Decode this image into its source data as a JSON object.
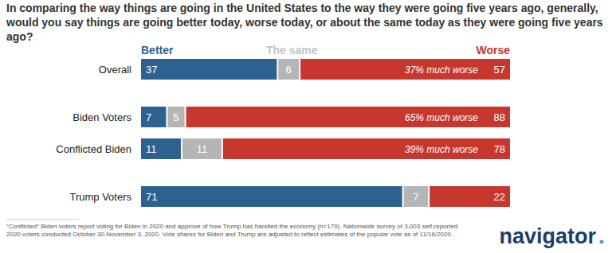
{
  "chart_data": {
    "type": "bar",
    "orientation": "horizontal",
    "stacked": true,
    "data_labels": true,
    "tick_labels": "y",
    "grid": false,
    "title": "In comparing the way things are going in the United States to the way they were going five years ago, generally, would you say things are going better today, worse today, or about the same today as they were going five years ago?",
    "categories": [
      "Overall",
      "Biden Voters",
      "Conflicted Biden",
      "Trump Voters"
    ],
    "series": [
      {
        "name": "Better",
        "color": "#2d6290",
        "values": [
          37,
          7,
          11,
          71
        ]
      },
      {
        "name": "The same",
        "color": "#b5b5b5",
        "values": [
          6,
          5,
          11,
          7
        ]
      },
      {
        "name": "Worse",
        "color": "#c8372d",
        "values": [
          57,
          88,
          78,
          22
        ]
      }
    ],
    "xlim": [
      0,
      100
    ],
    "annotations": [
      {
        "category": "Overall",
        "text": "37% much worse"
      },
      {
        "category": "Biden Voters",
        "text": "65% much worse"
      },
      {
        "category": "Conflicted Biden",
        "text": "39% much worse"
      }
    ],
    "footnote": "“Conflicted” Biden voters report voting for Biden in 2020 and approve of how Trump has handled the economy (n=179). Nationwide survey of 3,003 self-reported 2020 voters conducted October 30-November 3, 2020. Vote shares for Biden and Trump are adjusted to reflect estimates of the popular vote as of 11/16/2020.",
    "source": "navigator"
  }
}
